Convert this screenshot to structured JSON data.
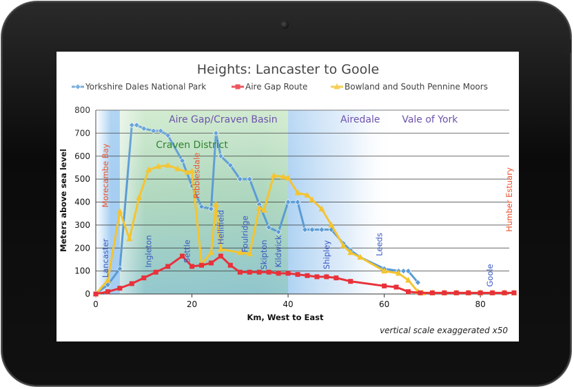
{
  "chart_data": {
    "type": "line",
    "title": "Heights: Lancaster to Goole",
    "xlabel": "Km, West to East",
    "ylabel": "Meters above sea level",
    "xlim": [
      0,
      86
    ],
    "ylim": [
      0,
      800
    ],
    "xticks": [
      "0",
      "20",
      "40",
      "60",
      "80"
    ],
    "yticks": [
      "0",
      "100",
      "200",
      "300",
      "400",
      "500",
      "600",
      "700",
      "800"
    ],
    "grid": true,
    "legend_position": "top",
    "note": "vertical scale exaggerated x50",
    "series": [
      {
        "name": "Yorkshire Dales National Park",
        "color": "#5b9bd5",
        "marker": "diamond",
        "x": [
          0,
          2.5,
          5,
          7.5,
          8.5,
          10,
          12,
          13.5,
          15,
          18,
          20,
          22,
          24,
          25,
          26,
          28,
          30,
          32,
          34,
          36,
          38,
          40,
          42,
          43.5,
          45,
          47,
          49,
          51.5,
          53,
          55,
          60,
          63,
          64,
          65,
          67
        ],
        "y": [
          0,
          40,
          110,
          735,
          735,
          720,
          710,
          710,
          690,
          580,
          470,
          380,
          370,
          700,
          600,
          560,
          500,
          500,
          390,
          290,
          270,
          400,
          400,
          280,
          280,
          280,
          280,
          220,
          190,
          160,
          110,
          100,
          100,
          100,
          50
        ]
      },
      {
        "name": "Aire Gap Route",
        "color": "#e8313a",
        "marker": "square",
        "x": [
          0,
          2.5,
          5,
          7.5,
          10,
          12.5,
          15,
          18,
          20,
          22,
          24,
          26,
          28,
          30,
          32,
          34,
          36,
          38,
          40,
          42,
          44,
          46,
          48,
          50,
          53,
          60,
          62.5,
          65,
          67.5,
          70,
          72.5,
          75,
          77.5,
          80,
          82.5,
          85,
          87
        ],
        "y": [
          0,
          10,
          25,
          45,
          70,
          95,
          120,
          165,
          120,
          125,
          135,
          165,
          125,
          95,
          95,
          95,
          95,
          90,
          90,
          85,
          80,
          75,
          75,
          70,
          55,
          35,
          30,
          10,
          5,
          5,
          5,
          5,
          5,
          5,
          5,
          5,
          5
        ]
      },
      {
        "name": "Bowland and South Pennine Moors",
        "color": "#f4c430",
        "marker": "triangle",
        "x": [
          0,
          2.5,
          5,
          7,
          9,
          11,
          13,
          15,
          17,
          19,
          20,
          22,
          24,
          25,
          26,
          30,
          32,
          34,
          35,
          37,
          39,
          40,
          42,
          44,
          45,
          47,
          49,
          51.5,
          53,
          55,
          60,
          63,
          65,
          67,
          68,
          70,
          72.5,
          75,
          77.5,
          80,
          82.5,
          85,
          87
        ],
        "y": [
          0,
          60,
          360,
          240,
          420,
          540,
          555,
          560,
          545,
          530,
          535,
          130,
          180,
          390,
          195,
          180,
          175,
          375,
          365,
          515,
          510,
          505,
          440,
          430,
          410,
          370,
          300,
          210,
          180,
          160,
          100,
          90,
          60,
          10,
          5,
          5,
          5,
          5,
          5,
          5,
          5,
          5,
          5
        ]
      }
    ],
    "regions": [
      "Aire Gap/Craven Basin",
      "Airedale",
      "Vale of York",
      "Craven District"
    ],
    "place_labels": [
      {
        "name": "Morecambe Bay",
        "x": 2,
        "color": "#e8502a"
      },
      {
        "name": "Lancaster",
        "x": 2,
        "color": "#3a57c0"
      },
      {
        "name": "Ingleton",
        "x": 11,
        "color": "#3a57c0"
      },
      {
        "name": "Settle",
        "x": 19,
        "color": "#3a57c0"
      },
      {
        "name": "Ribblesdale",
        "x": 21,
        "color": "#e8502a"
      },
      {
        "name": "Hellifield",
        "x": 26,
        "color": "#3a57c0"
      },
      {
        "name": "Foulridge",
        "x": 31,
        "color": "#3a57c0"
      },
      {
        "name": "Skipton",
        "x": 35,
        "color": "#3a57c0"
      },
      {
        "name": "Kildwick",
        "x": 38,
        "color": "#3a57c0"
      },
      {
        "name": "Shipley",
        "x": 48,
        "color": "#3a57c0"
      },
      {
        "name": "Leeds",
        "x": 59,
        "color": "#3a57c0"
      },
      {
        "name": "Goole",
        "x": 82,
        "color": "#3a57c0"
      },
      {
        "name": "Humber Estuary",
        "x": 86,
        "color": "#e8502a"
      }
    ]
  }
}
